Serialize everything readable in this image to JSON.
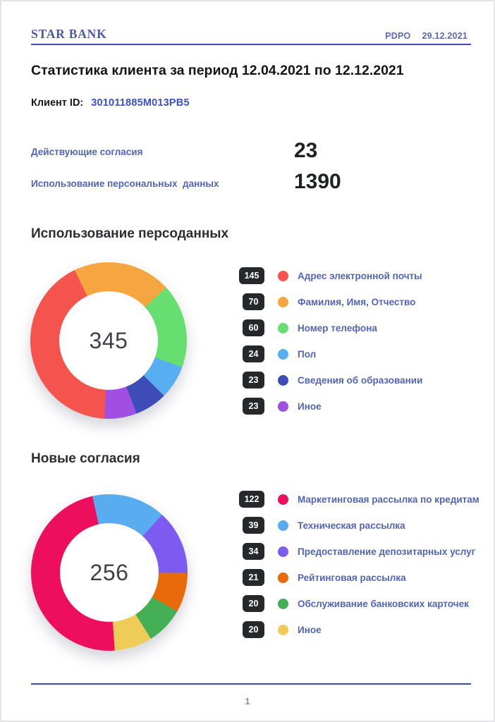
{
  "page": {
    "brand": "STAR BANK",
    "doc_type": "PDPO",
    "doc_date": "29.12.2021",
    "title": "Статистика клиента за период 12.04.2021 по 12.12.2021",
    "client_id_label": "Клиент ID:",
    "client_id": "301011885M013PB5",
    "page_number": "1",
    "accent_color": "#3C4CB0",
    "badge_color": "#26282B",
    "label_color": "#5264B8"
  },
  "summary": [
    {
      "label": "Действующие согласия",
      "value": "23"
    },
    {
      "label": "Использование персональных  данных",
      "value": "1390"
    }
  ],
  "chart_data": [
    {
      "type": "pie",
      "subtype": "donut",
      "title": "Использование персоданных",
      "total": 345,
      "rotation_deg": 183,
      "legend_position": "right",
      "segments": [
        {
          "label": "Адрес электронной почты",
          "value": 145,
          "color": "#F4534E"
        },
        {
          "label": "Фамилия, Имя, Отчество",
          "value": 70,
          "color": "#F6A641"
        },
        {
          "label": "Номер телефона",
          "value": 60,
          "color": "#67DE70"
        },
        {
          "label": "Пол",
          "value": 24,
          "color": "#57AEF0"
        },
        {
          "label": "Сведения об образовании",
          "value": 23,
          "color": "#3D4CB6"
        },
        {
          "label": "Иное",
          "value": 23,
          "color": "#A14FE3"
        }
      ]
    },
    {
      "type": "pie",
      "subtype": "donut",
      "title": "Новые согласия",
      "total": 256,
      "rotation_deg": 176,
      "legend_position": "right",
      "segments": [
        {
          "label": "Маркетинговая рассылка по кредитам",
          "value": 122,
          "color": "#EE0E5E"
        },
        {
          "label": "Техническая рассылка",
          "value": 39,
          "color": "#58ACEF"
        },
        {
          "label": "Предоставление депозитарных услуг",
          "value": 34,
          "color": "#7E5BF0"
        },
        {
          "label": "Рейтинговая рассылка",
          "value": 21,
          "color": "#E86A0B"
        },
        {
          "label": "Обслуживание банковских карточек",
          "value": 20,
          "color": "#44AF54"
        },
        {
          "label": "Иное",
          "value": 20,
          "color": "#EFCB58"
        }
      ]
    }
  ]
}
